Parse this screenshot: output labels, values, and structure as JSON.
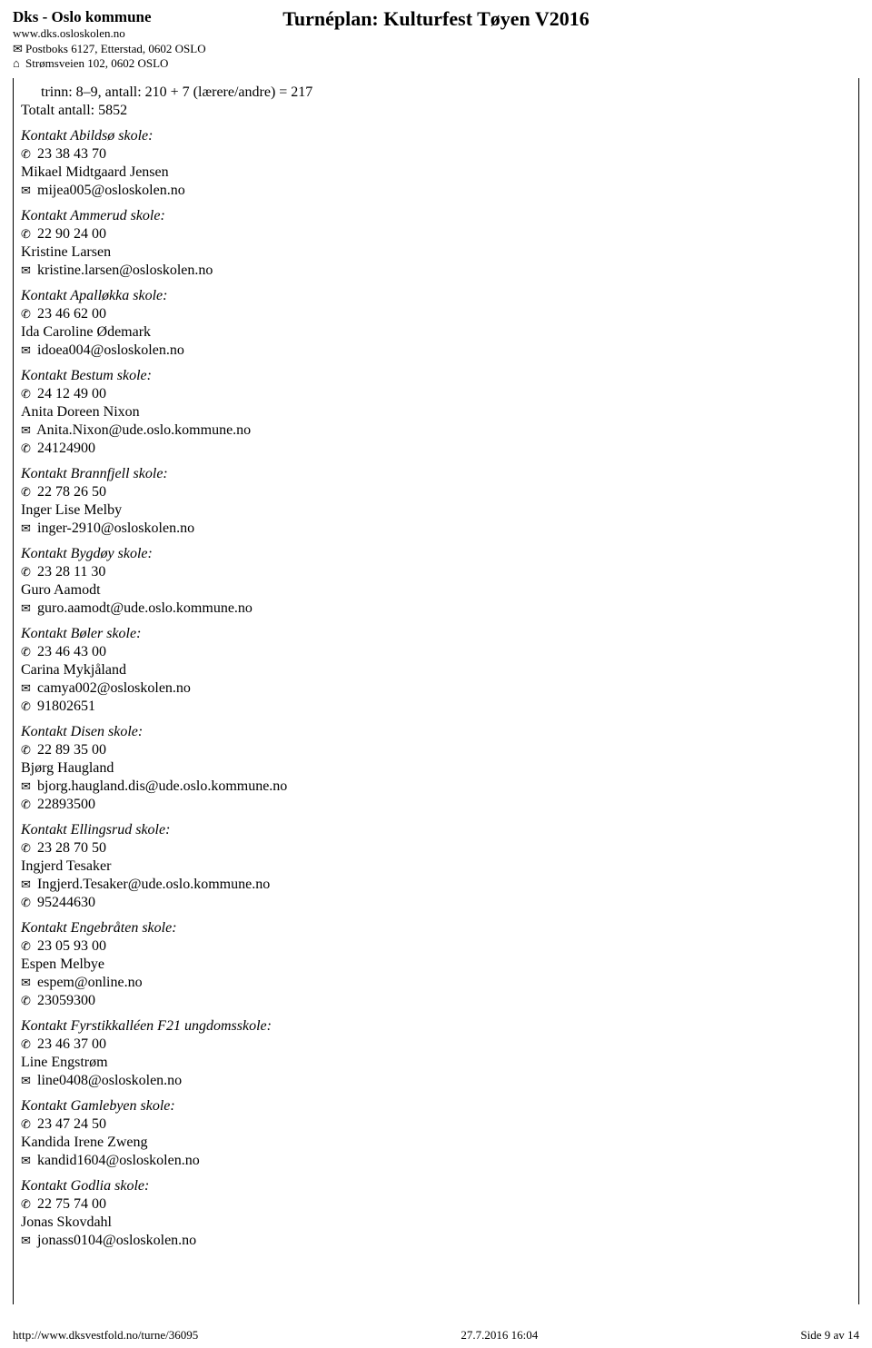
{
  "header": {
    "org_name": "Dks - Oslo kommune",
    "org_url": "www.dks.osloskolen.no",
    "postbox": "Postboks 6127, Etterstad, 0602 OSLO",
    "street": "Strømsveien 102, 0602 OSLO",
    "title": "Turnéplan: Kulturfest Tøyen V2016"
  },
  "intro": {
    "trinn": "trinn: 8–9, antall: 210 + 7 (lærere/andre) = 217",
    "total": "Totalt antall: 5852"
  },
  "icons": {
    "mail": "✉",
    "home": "⌂",
    "phone": "✆"
  },
  "contacts": [
    {
      "title": "Kontakt Abildsø skole:",
      "phone": "23 38 43 70",
      "person": "Mikael Midtgaard Jensen",
      "email": "mijea005@osloskolen.no"
    },
    {
      "title": "Kontakt Ammerud skole:",
      "phone": "22 90 24 00",
      "person": "Kristine Larsen",
      "email": "kristine.larsen@osloskolen.no"
    },
    {
      "title": "Kontakt Apalløkka skole:",
      "phone": "23 46 62 00",
      "person": "Ida Caroline Ødemark",
      "email": "idoea004@osloskolen.no"
    },
    {
      "title": "Kontakt Bestum skole:",
      "phone": "24 12 49 00",
      "person": "Anita Doreen Nixon",
      "email": "Anita.Nixon@ude.oslo.kommune.no",
      "phone2": "24124900"
    },
    {
      "title": "Kontakt Brannfjell skole:",
      "phone": "22 78 26 50",
      "person": "Inger Lise Melby",
      "email": "inger-2910@osloskolen.no"
    },
    {
      "title": "Kontakt Bygdøy skole:",
      "phone": "23 28 11 30",
      "person": "Guro Aamodt",
      "email": "guro.aamodt@ude.oslo.kommune.no"
    },
    {
      "title": "Kontakt Bøler skole:",
      "phone": "23 46 43 00",
      "person": "Carina Mykjåland",
      "email": "camya002@osloskolen.no",
      "phone2": "91802651"
    },
    {
      "title": "Kontakt Disen skole:",
      "phone": "22 89 35 00",
      "person": "Bjørg Haugland",
      "email": "bjorg.haugland.dis@ude.oslo.kommune.no",
      "phone2": "22893500"
    },
    {
      "title": "Kontakt Ellingsrud skole:",
      "phone": "23 28 70 50",
      "person": "Ingjerd Tesaker",
      "email": "Ingjerd.Tesaker@ude.oslo.kommune.no",
      "phone2": "95244630"
    },
    {
      "title": "Kontakt Engebråten skole:",
      "phone": "23 05 93 00",
      "person": "Espen Melbye",
      "email": "espem@online.no",
      "phone2": "23059300"
    },
    {
      "title": "Kontakt Fyrstikkalléen F21 ungdomsskole:",
      "phone": "23 46 37 00",
      "person": "Line Engstrøm",
      "email": "line0408@osloskolen.no"
    },
    {
      "title": "Kontakt Gamlebyen skole:",
      "phone": "23 47 24 50",
      "person": "Kandida Irene Zweng",
      "email": "kandid1604@osloskolen.no"
    },
    {
      "title": "Kontakt Godlia skole:",
      "phone": "22 75 74 00",
      "person": "Jonas Skovdahl",
      "email": "jonass0104@osloskolen.no"
    }
  ],
  "footer": {
    "url": "http://www.dksvestfold.no/turne/36095",
    "date": "27.7.2016 16:04",
    "page": "Side 9 av 14"
  }
}
